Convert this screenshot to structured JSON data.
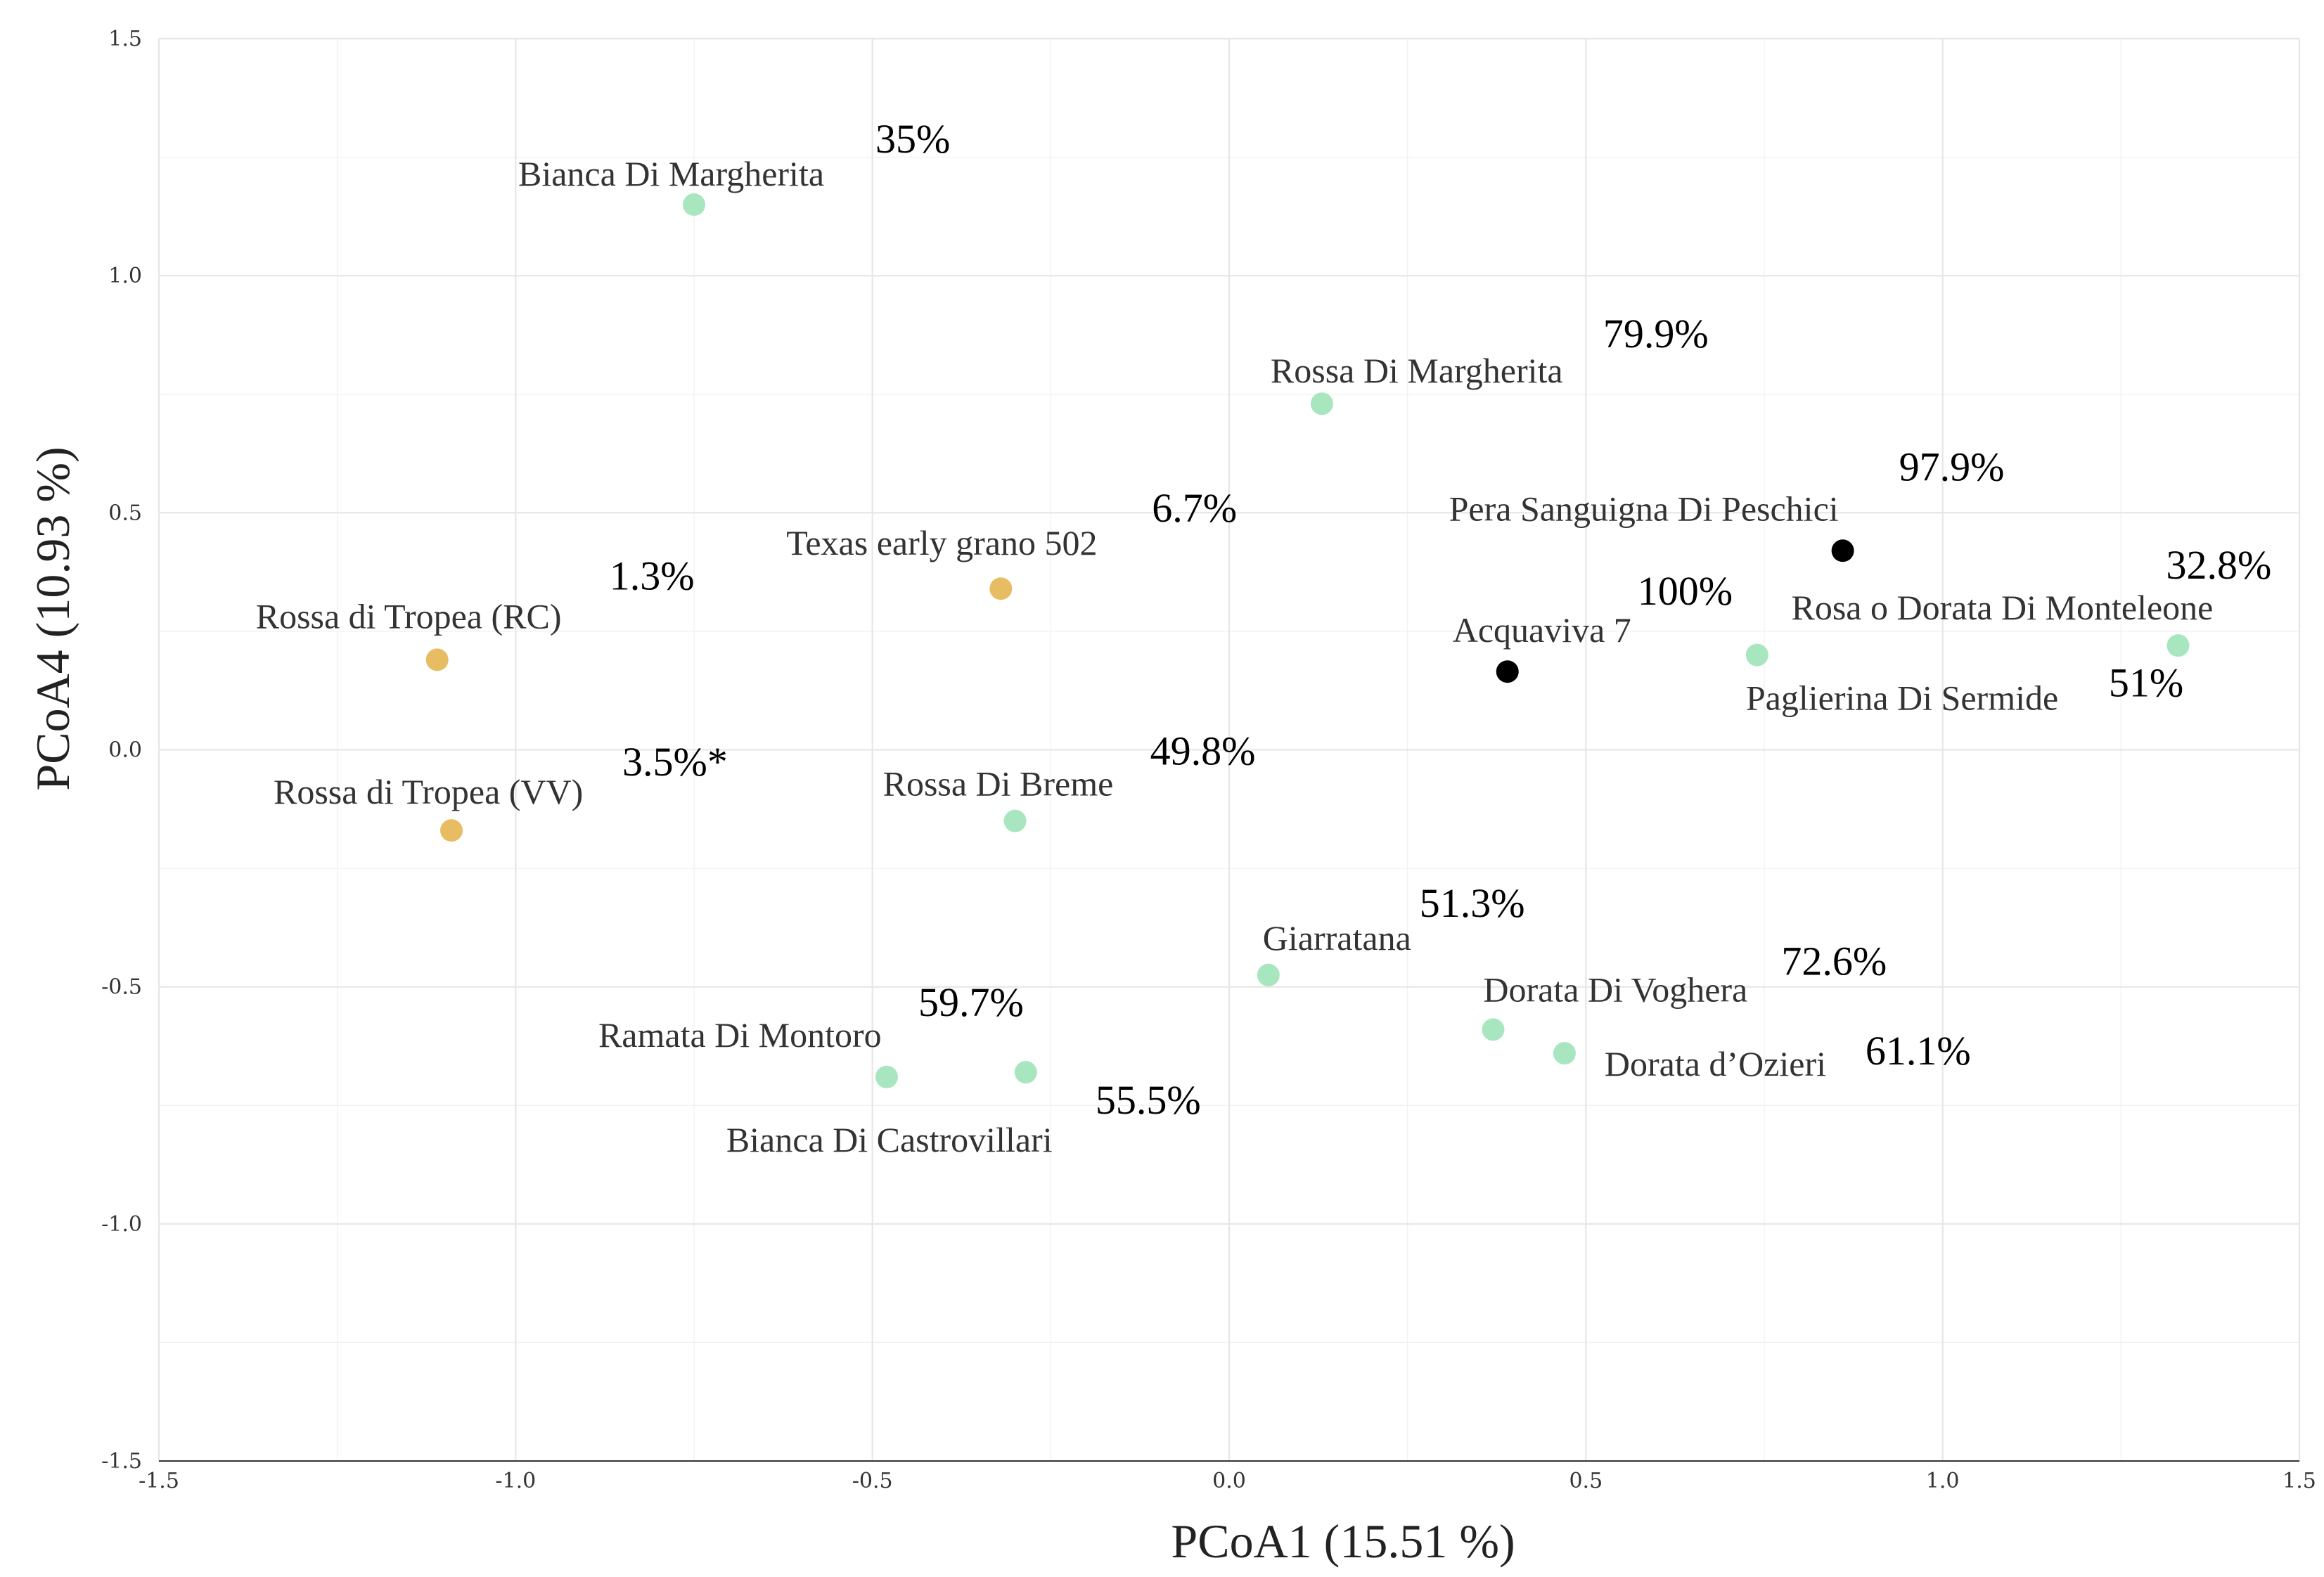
{
  "chart_data": {
    "type": "scatter",
    "title": "",
    "xlabel": "PCoA1  (15.51 %)",
    "ylabel": "PCoA4 (10.93 %)",
    "xlim": [
      -1.5,
      1.5
    ],
    "ylim": [
      -1.5,
      1.5
    ],
    "grid": true,
    "xticks": [
      "-1.5",
      "-1.0",
      "-0.5",
      "0.0",
      "0.5",
      "1.0",
      "1.5"
    ],
    "yticks": [
      "-1.5",
      "-1.0",
      "-0.5",
      "0.0",
      "0.5",
      "1.0",
      "1.5"
    ],
    "colors": {
      "green": "#a8e6bf",
      "gold": "#e8bc62",
      "black": "#000000"
    },
    "points": [
      {
        "name": "Bianca Di Margherita",
        "x": -0.75,
        "y": 1.15,
        "pct": "35%",
        "color": "green"
      },
      {
        "name": "Rossa Di Margherita",
        "x": 0.13,
        "y": 0.73,
        "pct": "79.9%",
        "color": "green"
      },
      {
        "name": "Pera Sanguigna Di Peschici",
        "x": 0.86,
        "y": 0.42,
        "pct": "97.9%",
        "color": "black"
      },
      {
        "name": "Texas early grano 502",
        "x": -0.32,
        "y": 0.34,
        "pct": "6.7%",
        "color": "gold"
      },
      {
        "name": "Rossa di Tropea (RC)",
        "x": -1.11,
        "y": 0.19,
        "pct": "1.3%",
        "color": "gold"
      },
      {
        "name": "Acquaviva 7",
        "x": 0.39,
        "y": 0.165,
        "pct": "100%",
        "color": "black"
      },
      {
        "name": "Paglierina Di Sermide",
        "x": 0.74,
        "y": 0.2,
        "pct": "51%",
        "color": "green"
      },
      {
        "name": "Rosa o Dorata Di Monteleone",
        "x": 1.33,
        "y": 0.22,
        "pct": "32.8%",
        "color": "green"
      },
      {
        "name": "Rossa di Tropea (VV)",
        "x": -1.09,
        "y": -0.17,
        "pct": "3.5%*",
        "color": "gold"
      },
      {
        "name": "Rossa Di Breme",
        "x": -0.3,
        "y": -0.15,
        "pct": "49.8%",
        "color": "green"
      },
      {
        "name": "Giarratana",
        "x": 0.055,
        "y": -0.475,
        "pct": "51.3%",
        "color": "green"
      },
      {
        "name": "Dorata Di Voghera",
        "x": 0.37,
        "y": -0.59,
        "pct": "72.6%",
        "color": "green"
      },
      {
        "name": "Dorata d’Ozieri",
        "x": 0.47,
        "y": -0.64,
        "pct": "61.1%",
        "color": "green"
      },
      {
        "name": "Ramata Di Montoro",
        "x": -0.48,
        "y": -0.69,
        "pct": "59.7%",
        "color": "green"
      },
      {
        "name": "Bianca Di Castrovillari",
        "x": -0.285,
        "y": -0.68,
        "pct": "55.5%",
        "color": "green"
      }
    ]
  }
}
